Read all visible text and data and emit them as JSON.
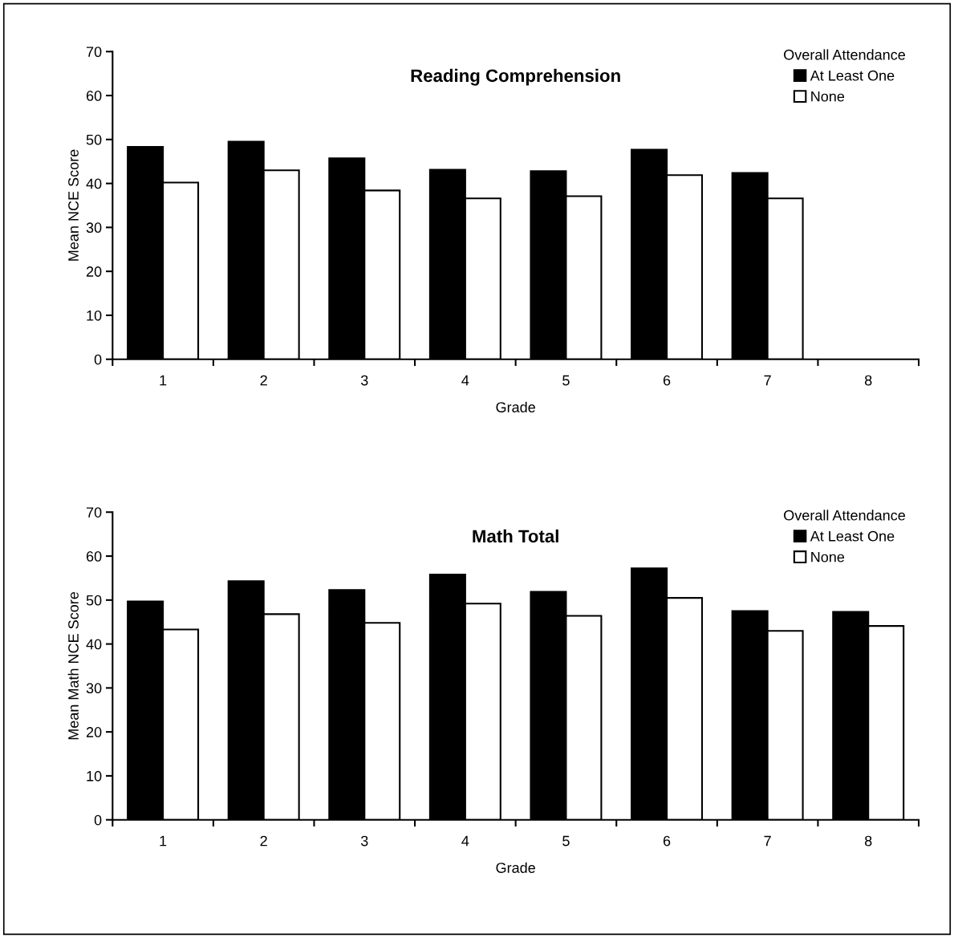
{
  "chart_data": [
    {
      "type": "bar",
      "title": "Reading Comprehension",
      "xlabel": "Grade",
      "ylabel": "Mean NCE Score",
      "legend_title": "Overall Attendance",
      "legend": "top right",
      "categories": [
        "1",
        "2",
        "3",
        "4",
        "5",
        "6",
        "7",
        "8"
      ],
      "ylim": [
        0,
        70
      ],
      "yticks": [
        0,
        10,
        20,
        30,
        40,
        50,
        60,
        70
      ],
      "series": [
        {
          "name": "At Least One",
          "color": "#000000",
          "values": [
            48.3,
            49.5,
            45.7,
            43.1,
            42.8,
            47.7,
            42.4,
            null
          ]
        },
        {
          "name": "None",
          "color": "#ffffff",
          "values": [
            40.2,
            43.0,
            38.4,
            36.6,
            37.1,
            41.9,
            36.6,
            null
          ]
        }
      ]
    },
    {
      "type": "bar",
      "title": "Math Total",
      "xlabel": "Grade",
      "ylabel": "Mean Math NCE Score",
      "legend_title": "Overall Attendance",
      "legend": "top right",
      "categories": [
        "1",
        "2",
        "3",
        "4",
        "5",
        "6",
        "7",
        "8"
      ],
      "ylim": [
        0,
        70
      ],
      "yticks": [
        0,
        10,
        20,
        30,
        40,
        50,
        60,
        70
      ],
      "series": [
        {
          "name": "At Least One",
          "color": "#000000",
          "values": [
            49.7,
            54.3,
            52.3,
            55.8,
            51.9,
            57.2,
            47.5,
            47.3
          ]
        },
        {
          "name": "None",
          "color": "#ffffff",
          "values": [
            43.3,
            46.8,
            44.8,
            49.2,
            46.4,
            50.5,
            43.0,
            44.1
          ]
        }
      ]
    }
  ]
}
